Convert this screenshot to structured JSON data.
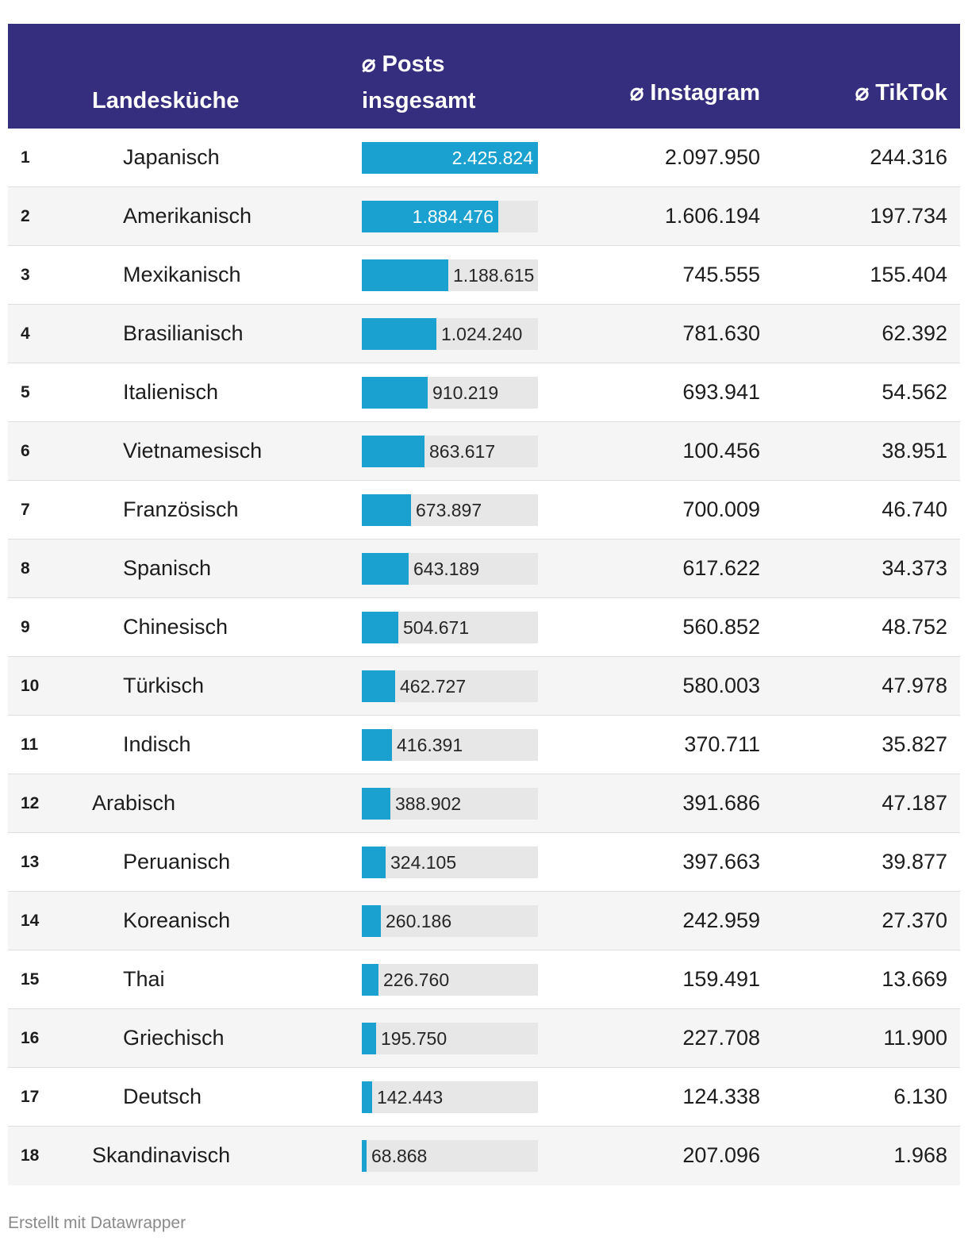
{
  "header": {
    "cuisine": "Landesküche",
    "posts_line1": "⌀ Posts",
    "posts_line2": "insgesamt",
    "instagram": "⌀ Instagram",
    "tiktok": "⌀ TikTok"
  },
  "footer": "Erstellt mit Datawrapper",
  "colors": {
    "header_bg": "#352d7d",
    "bar": "#1aa1cf",
    "bar_track": "#e7e7e7"
  },
  "chart_data": {
    "type": "table",
    "columns": [
      "",
      "Landesküche",
      "⌀ Posts insgesamt",
      "⌀ Instagram",
      "⌀ TikTok"
    ],
    "bar_max": 2425824,
    "rows": [
      {
        "rank": "1",
        "name": "Japanisch",
        "flag": "japan-flag-icon",
        "posts": 2425824,
        "posts_label": "2.425.824",
        "instagram": "2.097.950",
        "tiktok": "244.316"
      },
      {
        "rank": "2",
        "name": "Amerikanisch",
        "flag": "usa-flag-icon",
        "posts": 1884476,
        "posts_label": "1.884.476",
        "instagram": "1.606.194",
        "tiktok": "197.734"
      },
      {
        "rank": "3",
        "name": "Mexikanisch",
        "flag": "mexico-flag-icon",
        "posts": 1188615,
        "posts_label": "1.188.615",
        "instagram": "745.555",
        "tiktok": "155.404"
      },
      {
        "rank": "4",
        "name": "Brasilianisch",
        "flag": "brazil-flag-icon",
        "posts": 1024240,
        "posts_label": "1.024.240",
        "instagram": "781.630",
        "tiktok": "62.392"
      },
      {
        "rank": "5",
        "name": "Italienisch",
        "flag": "italy-flag-icon",
        "posts": 910219,
        "posts_label": "910.219",
        "instagram": "693.941",
        "tiktok": "54.562"
      },
      {
        "rank": "6",
        "name": "Vietnamesisch",
        "flag": "vietnam-flag-icon",
        "posts": 863617,
        "posts_label": "863.617",
        "instagram": "100.456",
        "tiktok": "38.951"
      },
      {
        "rank": "7",
        "name": "Französisch",
        "flag": "france-flag-icon",
        "posts": 673897,
        "posts_label": "673.897",
        "instagram": "700.009",
        "tiktok": "46.740"
      },
      {
        "rank": "8",
        "name": "Spanisch",
        "flag": "spain-flag-icon",
        "posts": 643189,
        "posts_label": "643.189",
        "instagram": "617.622",
        "tiktok": "34.373"
      },
      {
        "rank": "9",
        "name": "Chinesisch",
        "flag": "china-flag-icon",
        "posts": 504671,
        "posts_label": "504.671",
        "instagram": "560.852",
        "tiktok": "48.752"
      },
      {
        "rank": "10",
        "name": "Türkisch",
        "flag": "turkey-flag-icon",
        "posts": 462727,
        "posts_label": "462.727",
        "instagram": "580.003",
        "tiktok": "47.978"
      },
      {
        "rank": "11",
        "name": "Indisch",
        "flag": "india-flag-icon",
        "posts": 416391,
        "posts_label": "416.391",
        "instagram": "370.711",
        "tiktok": "35.827"
      },
      {
        "rank": "12",
        "name": "Arabisch",
        "flag": "",
        "posts": 388902,
        "posts_label": "388.902",
        "instagram": "391.686",
        "tiktok": "47.187"
      },
      {
        "rank": "13",
        "name": "Peruanisch",
        "flag": "peru-flag-icon",
        "posts": 324105,
        "posts_label": "324.105",
        "instagram": "397.663",
        "tiktok": "39.877"
      },
      {
        "rank": "14",
        "name": "Koreanisch",
        "flag": "korea-flag-icon",
        "posts": 260186,
        "posts_label": "260.186",
        "instagram": "242.959",
        "tiktok": "27.370"
      },
      {
        "rank": "15",
        "name": "Thai",
        "flag": "thailand-flag-icon",
        "posts": 226760,
        "posts_label": "226.760",
        "instagram": "159.491",
        "tiktok": "13.669"
      },
      {
        "rank": "16",
        "name": "Griechisch",
        "flag": "greece-flag-icon",
        "posts": 195750,
        "posts_label": "195.750",
        "instagram": "227.708",
        "tiktok": "11.900"
      },
      {
        "rank": "17",
        "name": "Deutsch",
        "flag": "germany-flag-icon",
        "posts": 142443,
        "posts_label": "142.443",
        "instagram": "124.338",
        "tiktok": "6.130"
      },
      {
        "rank": "18",
        "name": "Skandinavisch",
        "flag": "",
        "posts": 68868,
        "posts_label": "68.868",
        "instagram": "207.096",
        "tiktok": "1.968"
      }
    ]
  }
}
